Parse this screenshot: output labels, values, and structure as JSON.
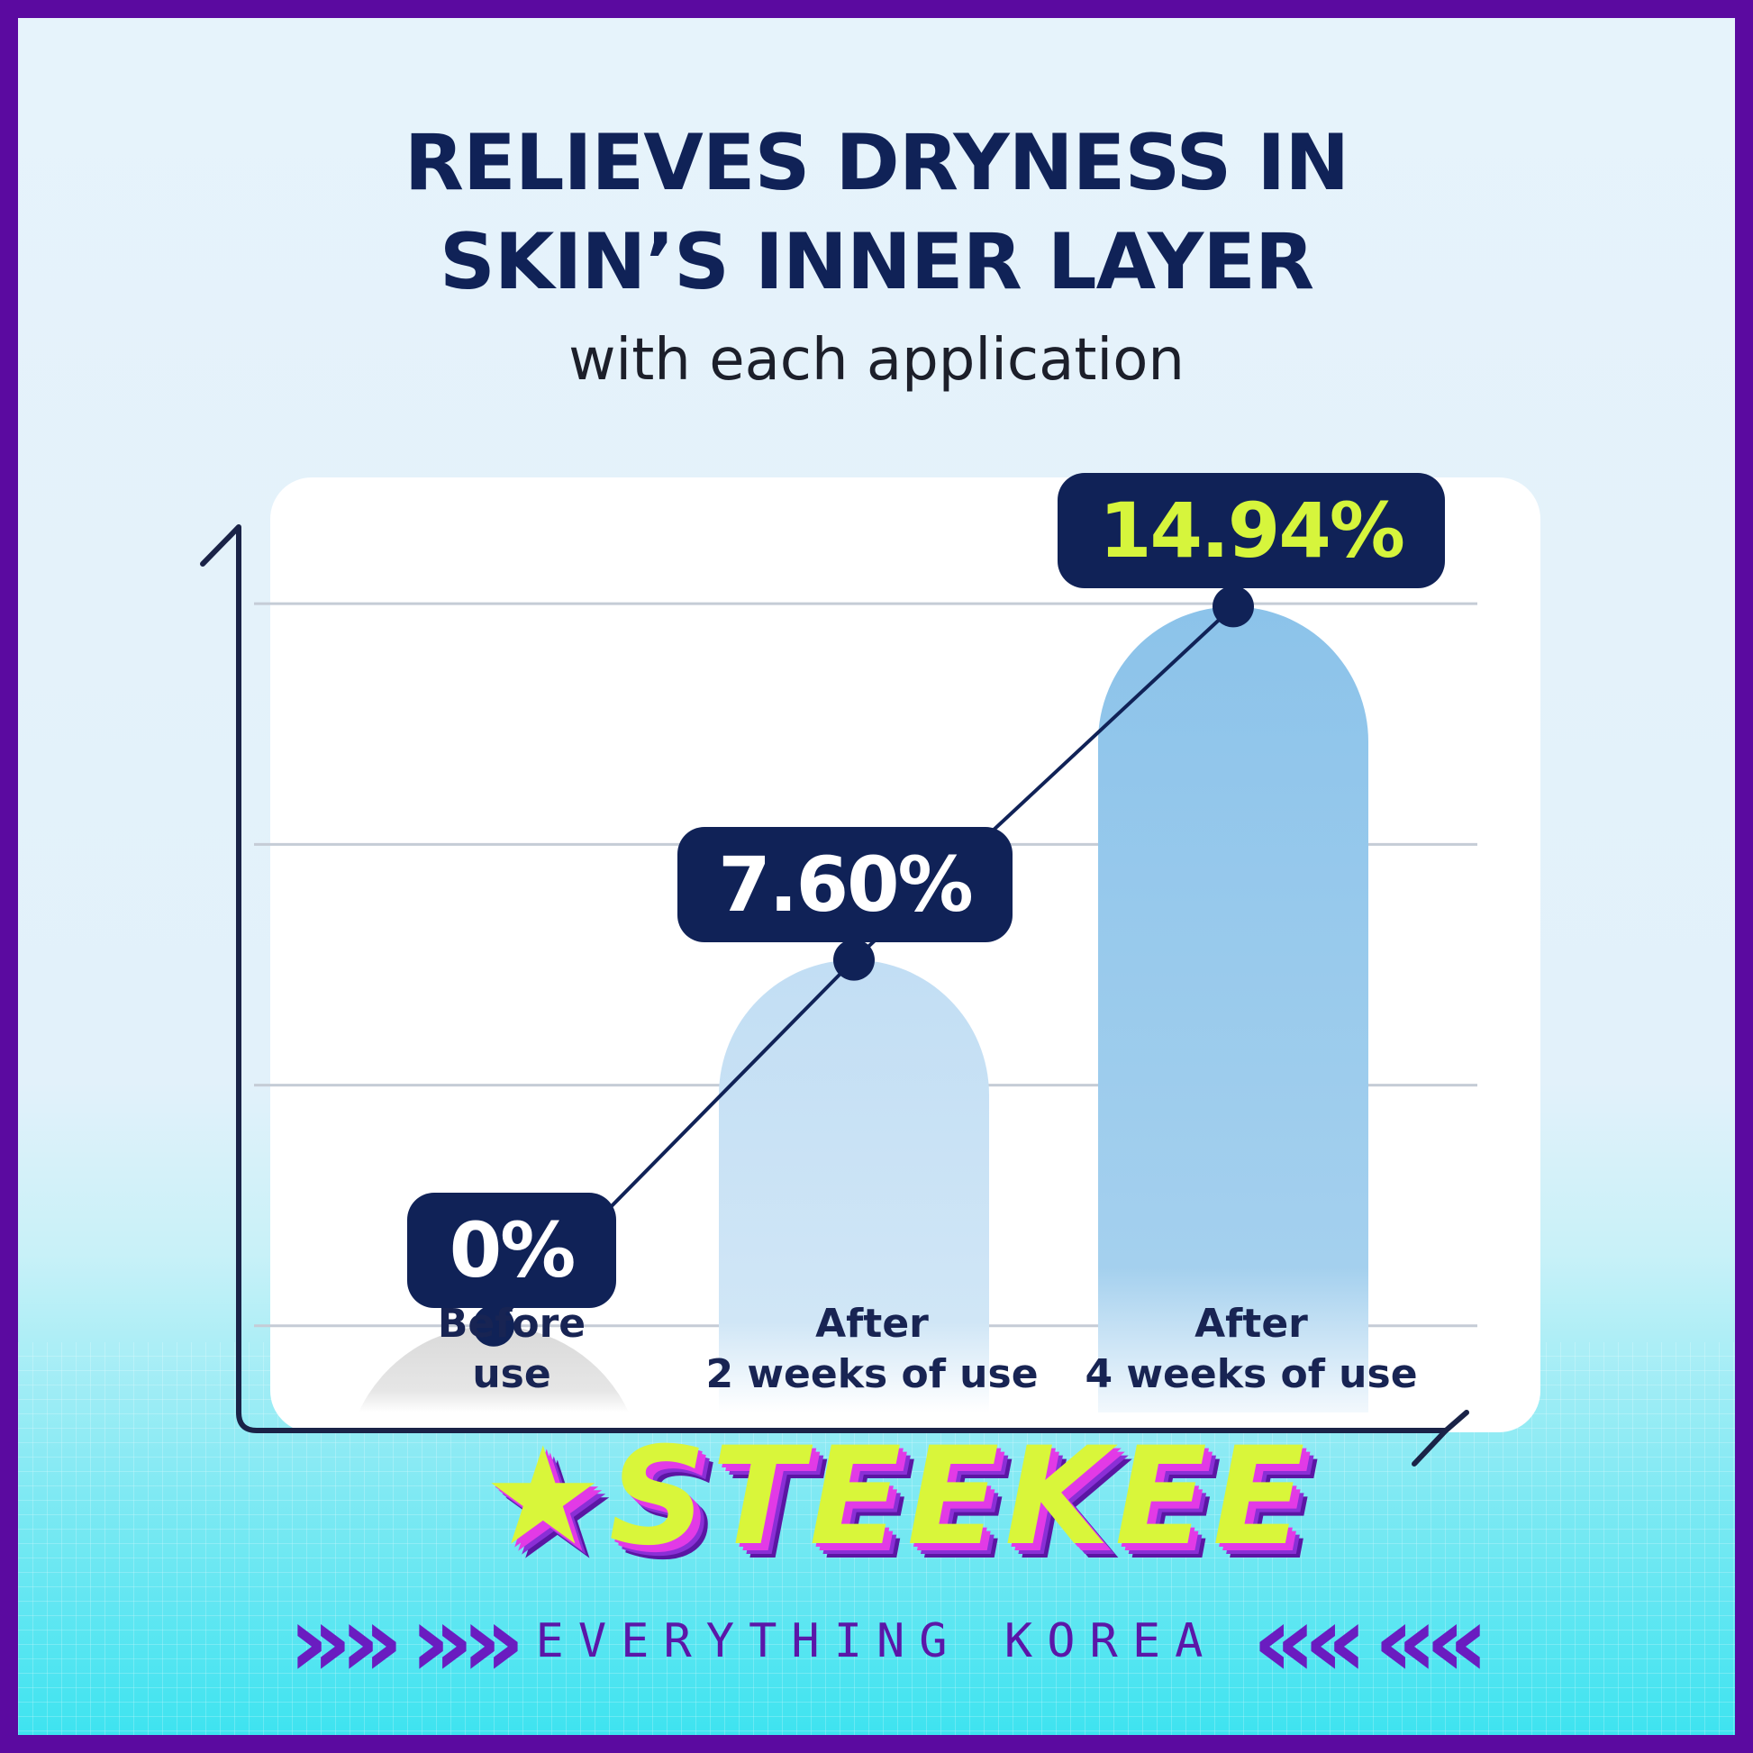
{
  "header": {
    "title_line1": "RELIEVES DRYNESS IN",
    "title_line2": "SKIN’S INNER LAYER",
    "subtitle": "with each application"
  },
  "chart_data": {
    "type": "bar",
    "categories": [
      "Before use",
      "After 2 weeks of use",
      "After 4 weeks of use"
    ],
    "category_lines": [
      [
        "Before",
        "use"
      ],
      [
        "After",
        "2 weeks of use"
      ],
      [
        "After",
        "4 weeks of use"
      ]
    ],
    "values": [
      0,
      7.6,
      14.94
    ],
    "data_labels": [
      "0%",
      "7.60%",
      "14.94%"
    ],
    "unit": "%",
    "ylim": [
      -1.8,
      16.5
    ],
    "gridlines": [
      0,
      5,
      10,
      15
    ],
    "grid": true,
    "legend": "none",
    "trend_line": true,
    "colors": {
      "bar": [
        "#d9d9d9",
        "#c2def4",
        "#8cc3ea"
      ],
      "label_bg": "#102257",
      "label_text": [
        "#ffffff",
        "#ffffff",
        "#d6f53c"
      ],
      "line": "#102257",
      "axis": "#1a2347",
      "grid": "#c5ccd6"
    }
  },
  "branding": {
    "logo_text": "★STEEKEE",
    "tagline": "EVERYTHING KOREA",
    "left_arrows": "»»",
    "right_arrows": "««",
    "frame_color": "#5b0aa0"
  }
}
